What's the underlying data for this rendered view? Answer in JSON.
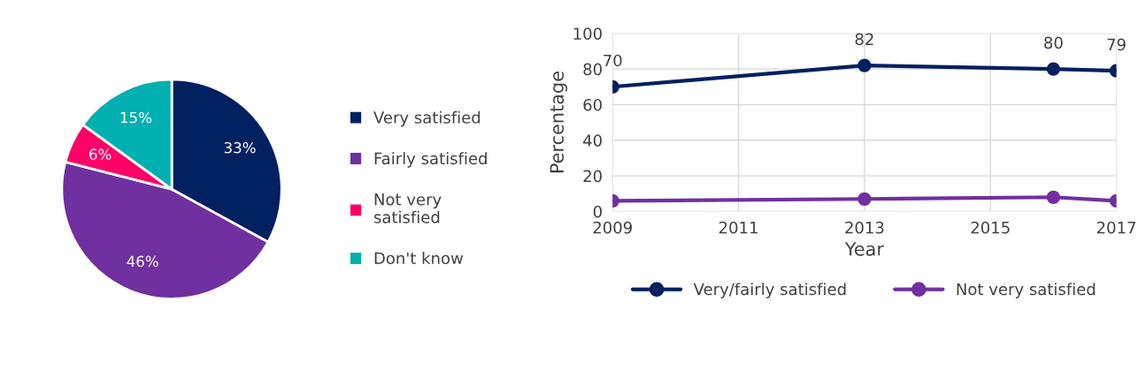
{
  "chart_data": [
    {
      "type": "pie",
      "categories": [
        "Very satisfied",
        "Fairly satisfied",
        "Not very\nsatisfied",
        "Don't know"
      ],
      "values": [
        33,
        46,
        6,
        15
      ],
      "colors": [
        "#002060",
        "#7030a0",
        "#ff0066",
        "#00b0b0"
      ],
      "value_labels": [
        "33%",
        "46%",
        "6%",
        "15%"
      ],
      "legend": "right"
    },
    {
      "type": "line",
      "xlabel": "Year",
      "ylabel": "Percentage",
      "x": [
        2009,
        2013,
        2016,
        2017
      ],
      "series": [
        {
          "name": "Very/fairly satisfied",
          "color": "#002060",
          "values": [
            70,
            82,
            80,
            79
          ],
          "value_labels": [
            "70",
            "82",
            "80",
            "79"
          ]
        },
        {
          "name": "Not very satisfied",
          "color": "#7030a0",
          "values": [
            6,
            7,
            8,
            6
          ]
        }
      ],
      "xlim": [
        2009,
        2017
      ],
      "xticks": [
        2009,
        2011,
        2013,
        2015,
        2017
      ],
      "ylim": [
        0,
        100
      ],
      "yticks": [
        0,
        20,
        40,
        60,
        80,
        100
      ],
      "grid": true,
      "legend": "bottom",
      "marker": "circle",
      "line_style": "solid"
    }
  ]
}
